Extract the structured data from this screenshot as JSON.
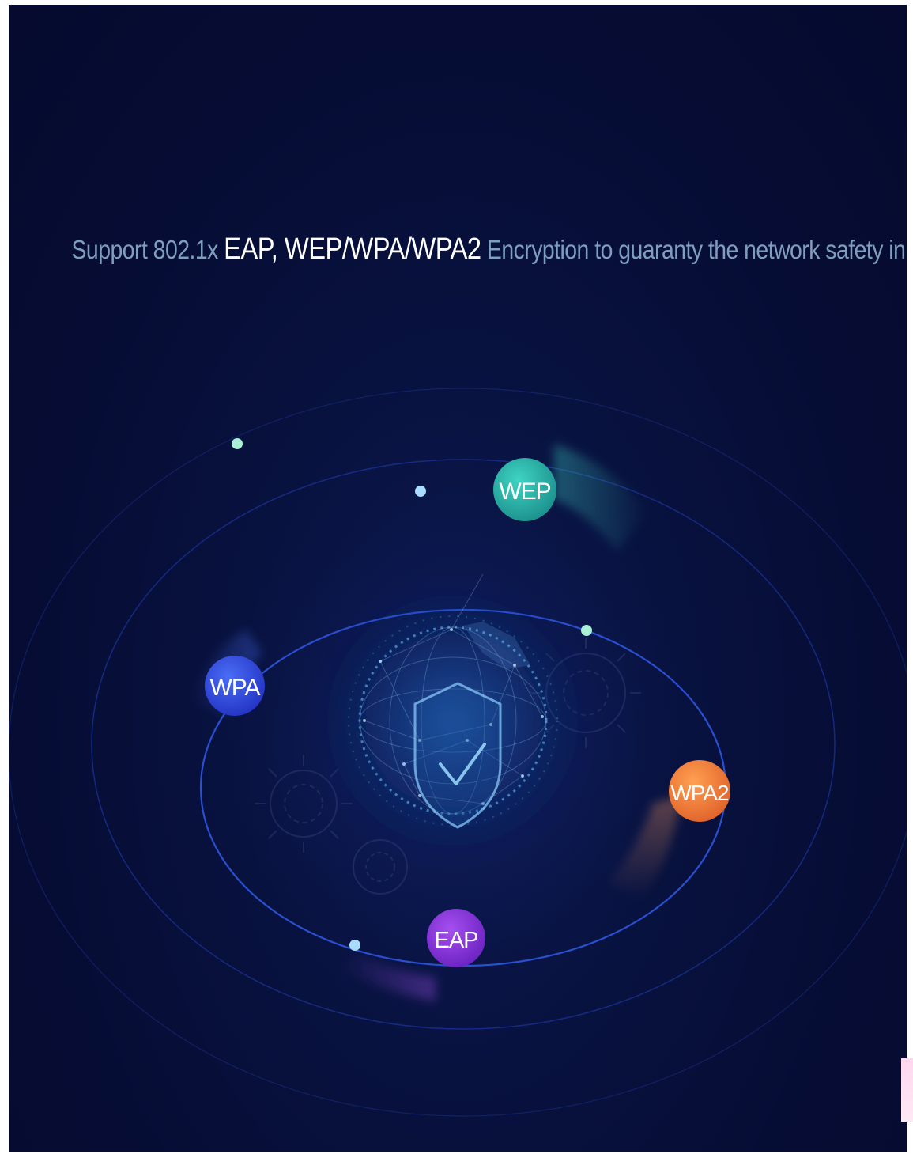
{
  "headline": {
    "part1": "Support 802.1x ",
    "highlight": "EAP, WEP/WPA/WPA2",
    "part2": " Encryption to guaranty the network safety in maximum."
  },
  "badges": {
    "wep": "WEP",
    "wpa": "WPA",
    "wpa2": "WPA2",
    "eap": "EAP"
  },
  "colors": {
    "background": "#060c33",
    "orbit": "#2a4fd0",
    "headline_text": "#7e9ec0",
    "highlight_text": "#ffffff",
    "wep_badge": "#22b3a6",
    "wpa_badge": "#2f4fe0",
    "wpa2_badge": "#f0823a",
    "eap_badge": "#8a3ce0",
    "dot_mint": "#a8f0d6",
    "dot_sky": "#a9dcff"
  },
  "icons": [
    "shield-check-icon",
    "globe-mesh-icon",
    "gear-icon"
  ]
}
